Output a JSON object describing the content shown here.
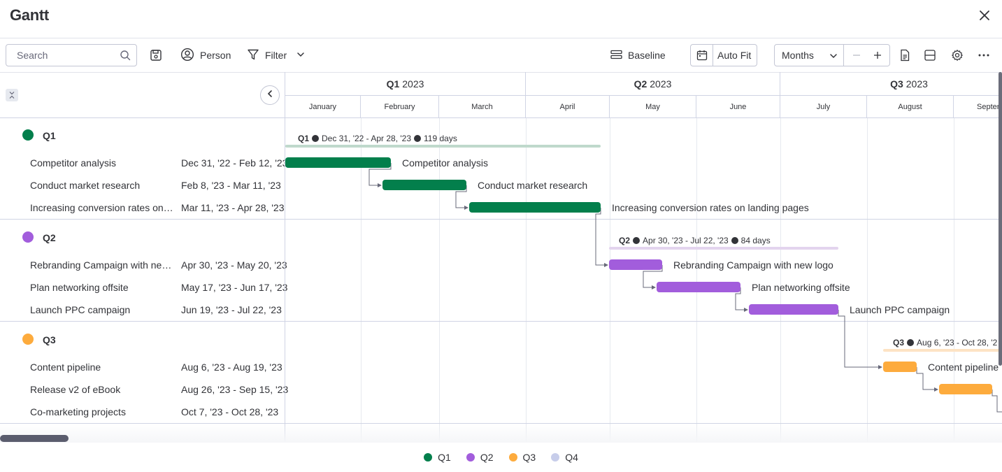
{
  "window": {
    "title": "Gantt"
  },
  "toolbar": {
    "search_placeholder": "Search",
    "person_label": "Person",
    "filter_label": "Filter",
    "baseline_label": "Baseline",
    "autofit_label": "Auto Fit",
    "scale_label": "Months"
  },
  "timeline": {
    "quarters": [
      {
        "name": "Q1",
        "year": "2023"
      },
      {
        "name": "Q2",
        "year": "2023"
      },
      {
        "name": "Q3",
        "year": "2023"
      }
    ],
    "months": [
      "January",
      "February",
      "March",
      "April",
      "May",
      "June",
      "July",
      "August",
      "Septen"
    ]
  },
  "groups": [
    {
      "name": "Q1",
      "color": "#037f4c",
      "light": "#bfd9cc",
      "summary": {
        "name": "Q1",
        "range": "Dec 31, '22 - Apr 28, '23",
        "days": "119 days"
      },
      "tasks": [
        {
          "name": "Competitor analysis",
          "dates": "Dec 31, '22 - Feb 12, '23",
          "bar_label": "Competitor analysis"
        },
        {
          "name": "Conduct market research",
          "dates": "Feb 8, '23 - Mar 11, '23",
          "bar_label": "Conduct market research"
        },
        {
          "name": "Increasing conversion rates on l...",
          "dates": "Mar 11, '23 - Apr 28, '23",
          "bar_label": "Increasing conversion rates on landing pages"
        }
      ]
    },
    {
      "name": "Q2",
      "color": "#a25ddc",
      "light": "#e3d4ee",
      "summary": {
        "name": "Q2",
        "range": "Apr 30, '23 - Jul 22, '23",
        "days": "84 days"
      },
      "tasks": [
        {
          "name": "Rebranding Campaign with new ...",
          "dates": "Apr 30, '23 - May 20, '23",
          "bar_label": "Rebranding Campaign with new logo"
        },
        {
          "name": "Plan networking offsite",
          "dates": "May 17, '23 - Jun 17, '23",
          "bar_label": "Plan networking offsite"
        },
        {
          "name": "Launch PPC campaign",
          "dates": "Jun 19, '23 - Jul 22, '23",
          "bar_label": "Launch PPC campaign"
        }
      ]
    },
    {
      "name": "Q3",
      "color": "#fdab3d",
      "light": "#fde3c4",
      "summary": {
        "name": "Q3",
        "range": "Aug 6, '23 - Oct 28, '2",
        "days": ""
      },
      "tasks": [
        {
          "name": "Content pipeline",
          "dates": "Aug 6, '23 - Aug 19, '23",
          "bar_label": "Content pipeline"
        },
        {
          "name": "Release v2 of eBook",
          "dates": "Aug 26, '23 - Sep 15, '23",
          "bar_label": ""
        },
        {
          "name": "Co-marketing projects",
          "dates": "Oct 7, '23 - Oct 28, '23",
          "bar_label": ""
        }
      ]
    }
  ],
  "legend": [
    {
      "label": "Q1",
      "color": "#037f4c"
    },
    {
      "label": "Q2",
      "color": "#a25ddc"
    },
    {
      "label": "Q3",
      "color": "#fdab3d"
    },
    {
      "label": "Q4",
      "color": "#c7cdea"
    }
  ]
}
